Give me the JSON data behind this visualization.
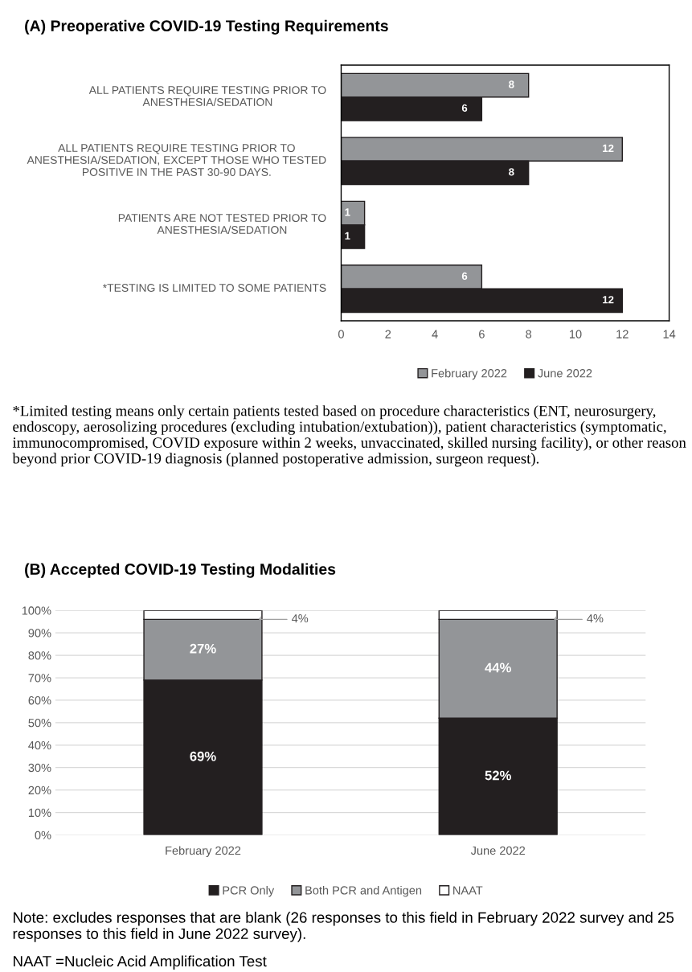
{
  "chart_data": [
    {
      "type": "bar",
      "orientation": "horizontal",
      "title": "(A) Preoperative COVID-19 Testing Requirements",
      "categories": [
        "ALL PATIENTS REQUIRE TESTING PRIOR TO ANESTHESIA/SEDATION",
        "ALL PATIENTS REQUIRE TESTING PRIOR TO ANESTHESIA/SEDATION, EXCEPT THOSE WHO TESTED POSITIVE IN THE PAST 30-90 DAYS.",
        "PATIENTS ARE NOT TESTED PRIOR TO ANESTHESIA/SEDATION",
        "*TESTING IS LIMITED TO SOME PATIENTS"
      ],
      "series": [
        {
          "name": "February 2022",
          "color": "#939598",
          "values": [
            8,
            12,
            1,
            6
          ]
        },
        {
          "name": "June 2022",
          "color": "#231f20",
          "values": [
            6,
            8,
            1,
            12
          ]
        }
      ],
      "xlim": [
        0,
        14
      ],
      "xticks": [
        0,
        2,
        4,
        6,
        8,
        10,
        12,
        14
      ],
      "data_labels": true,
      "legend": "bottom",
      "annotations": [
        "*Limited testing means only certain patients tested based on procedure characteristics (ENT, neurosurgery, endoscopy, aerosolizing procedures (excluding intubation/extubation)), patient characteristics (symptomatic, immunocompromised, COVID exposure within 2 weeks, unvaccinated, skilled nursing facility), or other reason beyond prior COVID-19 diagnosis (planned postoperative admission, surgeon request)."
      ]
    },
    {
      "type": "bar",
      "stacked": true,
      "title": "(B) Accepted COVID-19 Testing Modalities",
      "categories": [
        "February 2022",
        "June 2022"
      ],
      "series": [
        {
          "name": "PCR Only",
          "color": "#231f20",
          "values": [
            69,
            52
          ],
          "value_labels": [
            "69%",
            "52%"
          ]
        },
        {
          "name": "Both PCR and Antigen",
          "color": "#939598",
          "values": [
            27,
            44
          ],
          "value_labels": [
            "27%",
            "44%"
          ]
        },
        {
          "name": "NAAT",
          "color": "#ffffff",
          "values": [
            4,
            4
          ],
          "value_labels": [
            "4%",
            "4%"
          ]
        }
      ],
      "ylim": [
        0,
        100
      ],
      "yticks": [
        {
          "value": 0,
          "label": "0%"
        },
        {
          "value": 10,
          "label": "10%"
        },
        {
          "value": 20,
          "label": "20%"
        },
        {
          "value": 30,
          "label": "30%"
        },
        {
          "value": 40,
          "label": "40%"
        },
        {
          "value": 50,
          "label": "50%"
        },
        {
          "value": 60,
          "label": "60%"
        },
        {
          "value": 70,
          "label": "70%"
        },
        {
          "value": 80,
          "label": "80%"
        },
        {
          "value": 90,
          "label": "90%"
        },
        {
          "value": 100,
          "label": "100%"
        }
      ],
      "grid": "y",
      "legend": "bottom",
      "annotations": [
        "Note: excludes responses that are blank (26 responses to this field in February 2022 survey and 25 responses to this field in June 2022 survey).",
        "NAAT =Nucleic Acid Amplification Test"
      ]
    }
  ]
}
